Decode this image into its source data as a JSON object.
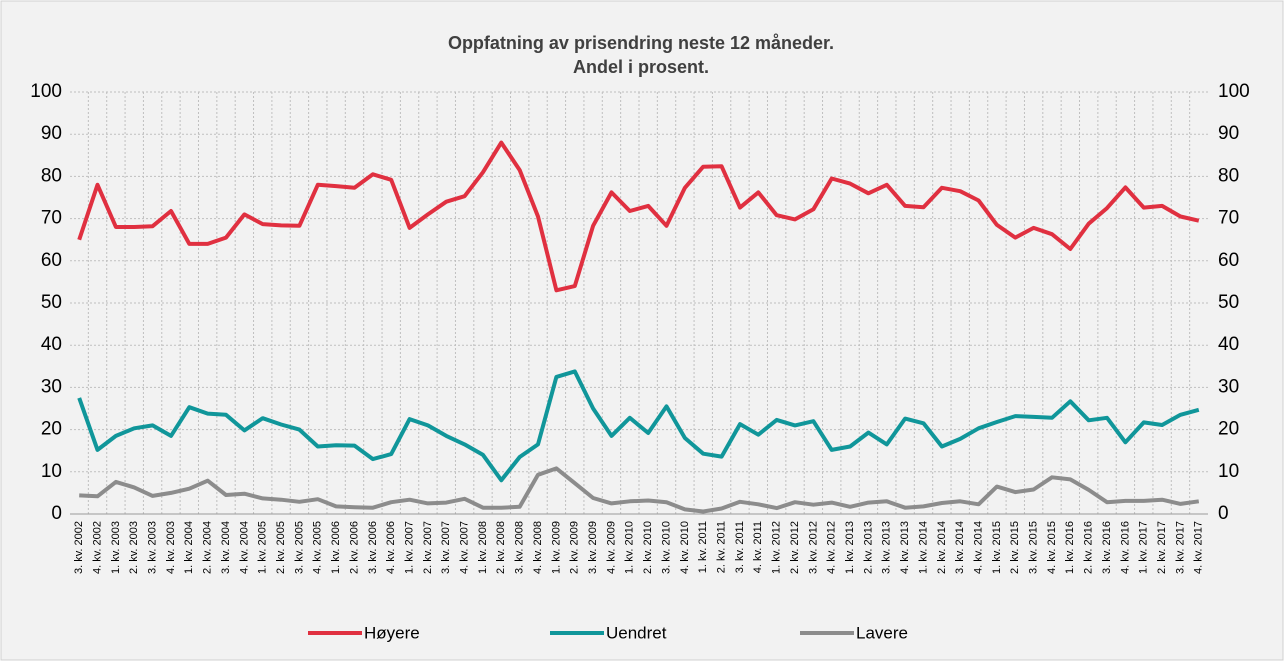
{
  "chart_data": {
    "type": "line",
    "title": "Oppfatning av prisendring neste 12 måneder.",
    "subtitle": "Andel i prosent.",
    "categories": [
      "3. kv. 2002",
      "4. kv. 2002",
      "1. kv. 2003",
      "2. kv. 2003",
      "3. kv. 2003",
      "4. kv. 2003",
      "1. kv. 2004",
      "2. kv. 2004",
      "3. kv. 2004",
      "4. kv. 2004",
      "1. kv. 2005",
      "2. kv. 2005",
      "3. kv. 2005",
      "4. kv. 2005",
      "1. kv. 2006",
      "2. kv. 2006",
      "3. kv. 2006",
      "4. kv. 2006",
      "1. kv. 2007",
      "2. kv. 2007",
      "3. kv. 2007",
      "4. kv. 2007",
      "1. kv. 2008",
      "2. kv. 2008",
      "3. kv. 2008",
      "4. kv. 2008",
      "1. kv. 2009",
      "2. kv. 2009",
      "3. kv. 2009",
      "4. kv. 2009",
      "1. kv. 2010",
      "2. kv. 2010",
      "3. kv. 2010",
      "4. kv. 2010",
      "1. kv. 2011",
      "2. kv. 2011",
      "3. kv. 2011",
      "4. kv. 2011",
      "1. kv. 2012",
      "2. kv. 2012",
      "3. kv. 2012",
      "4. kv. 2012",
      "1. kv. 2013",
      "2. kv. 2013",
      "3. kv. 2013",
      "4. kv. 2013",
      "1. kv. 2014",
      "2. kv. 2014",
      "3. kv. 2014",
      "4. kv. 2014",
      "1. kv. 2015",
      "2. kv. 2015",
      "3. kv. 2015",
      "4. kv. 2015",
      "1. kv. 2016",
      "2. kv. 2016",
      "3. kv. 2016",
      "4. kv. 2016",
      "1. kv. 2017",
      "2. kv. 2017",
      "3. kv. 2017",
      "4. kv. 2017"
    ],
    "series": [
      {
        "name": "Høyere",
        "color": "#e03040",
        "values": [
          65,
          78,
          68,
          68,
          68.2,
          71.8,
          64,
          64,
          65.5,
          71,
          68.7,
          68.4,
          68.3,
          78,
          77.7,
          77.3,
          80.5,
          79.2,
          67.8,
          71,
          74,
          75.3,
          81,
          88,
          81.5,
          70.5,
          53,
          54,
          68.3,
          76.2,
          71.8,
          73,
          68.3,
          77.3,
          82.3,
          82.4,
          72.6,
          76.2,
          70.8,
          69.8,
          72.2,
          79.5,
          78.3,
          76,
          78,
          73,
          72.7,
          77.3,
          76.5,
          74.3,
          68.5,
          65.5,
          67.8,
          66.3,
          62.8,
          68.8,
          72.5,
          77.4,
          72.6,
          73,
          70.5,
          69.5
        ]
      },
      {
        "name": "Uendret",
        "color": "#10969a",
        "values": [
          27.5,
          15.2,
          18.5,
          20.3,
          21,
          18.5,
          25.3,
          23.8,
          23.5,
          19.8,
          22.7,
          21.2,
          20,
          16,
          16.3,
          16.2,
          13,
          14.2,
          22.5,
          21,
          18.5,
          16.5,
          14,
          8,
          13.5,
          16.5,
          32.5,
          33.8,
          25,
          18.5,
          22.8,
          19.2,
          25.5,
          18,
          14.3,
          13.6,
          21.3,
          18.8,
          22.3,
          21,
          22,
          15.2,
          16,
          19.3,
          16.5,
          22.6,
          21.5,
          16,
          17.8,
          20.3,
          21.8,
          23.2,
          23,
          22.8,
          26.7,
          22.2,
          22.8,
          17,
          21.7,
          21.1,
          23.5,
          24.7
        ]
      },
      {
        "name": "Lavere",
        "color": "#8c8c8c",
        "values": [
          4.4,
          4.2,
          7.6,
          6.3,
          4.3,
          5,
          6,
          7.9,
          4.5,
          4.8,
          3.7,
          3.4,
          2.9,
          3.5,
          1.8,
          1.6,
          1.5,
          2.8,
          3.4,
          2.5,
          2.7,
          3.6,
          1.5,
          1.5,
          1.7,
          9.3,
          10.8,
          7.3,
          3.8,
          2.5,
          3,
          3.2,
          2.8,
          1.1,
          0.6,
          1.3,
          2.9,
          2.3,
          1.4,
          2.8,
          2.2,
          2.7,
          1.7,
          2.7,
          3,
          1.5,
          1.8,
          2.6,
          3,
          2.3,
          6.5,
          5.2,
          5.8,
          8.7,
          8.2,
          5.7,
          2.8,
          3.1,
          3.1,
          3.4,
          2.4,
          3
        ]
      }
    ],
    "ylim": [
      0,
      100
    ],
    "yticks": [
      0,
      10,
      20,
      30,
      40,
      50,
      60,
      70,
      80,
      90,
      100
    ],
    "y2lim": [
      0,
      100
    ],
    "y2ticks": [
      0,
      10,
      20,
      30,
      40,
      50,
      60,
      70,
      80,
      90,
      100
    ],
    "grid": true,
    "legend": "bottom"
  }
}
